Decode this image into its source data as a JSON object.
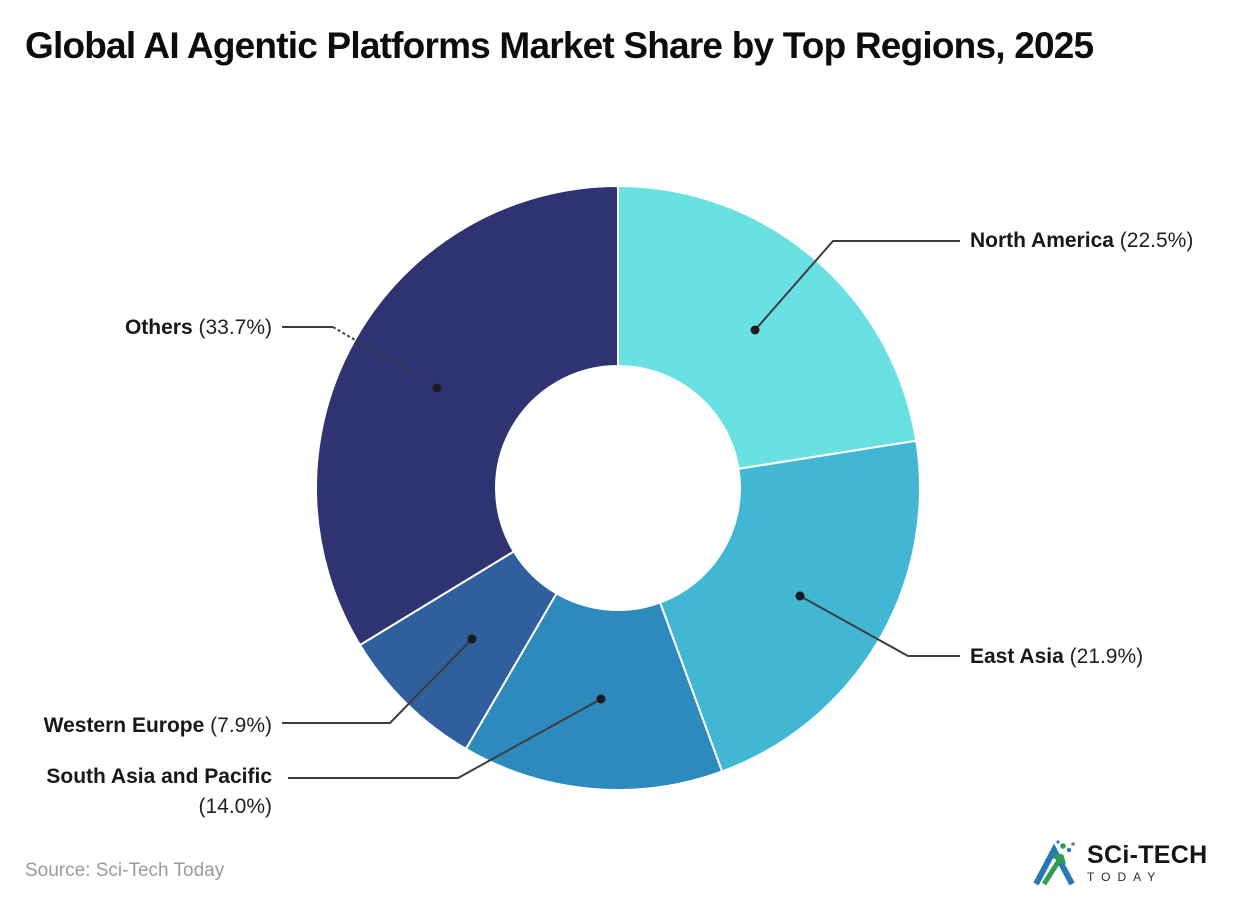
{
  "title": "Global AI Agentic Platforms Market Share by Top Regions, 2025",
  "source": "Source: Sci-Tech Today",
  "logo": {
    "line1": "SCi-TECH",
    "line2": "TODAY"
  },
  "chart_data": {
    "type": "pie",
    "donut": true,
    "title": "Global AI Agentic Platforms Market Share by Top Regions, 2025",
    "start_angle_deg": 0,
    "direction": "clockwise-from-top",
    "legend_position": "outside-callout-labels",
    "segments": [
      {
        "label": "North America",
        "value": 22.5,
        "pct": "(22.5%)",
        "color": "#69E1E3"
      },
      {
        "label": "East Asia",
        "value": 21.9,
        "pct": "(21.9%)",
        "color": "#41B7D3"
      },
      {
        "label": "South Asia and Pacific",
        "value": 14.0,
        "pct": "(14.0%)",
        "color": "#2D8ABC"
      },
      {
        "label": "Western Europe",
        "value": 7.9,
        "pct": "(7.9%)",
        "color": "#305F9E"
      },
      {
        "label": "Others",
        "value": 33.7,
        "pct": "(33.7%)",
        "color": "#2F3372"
      }
    ]
  }
}
